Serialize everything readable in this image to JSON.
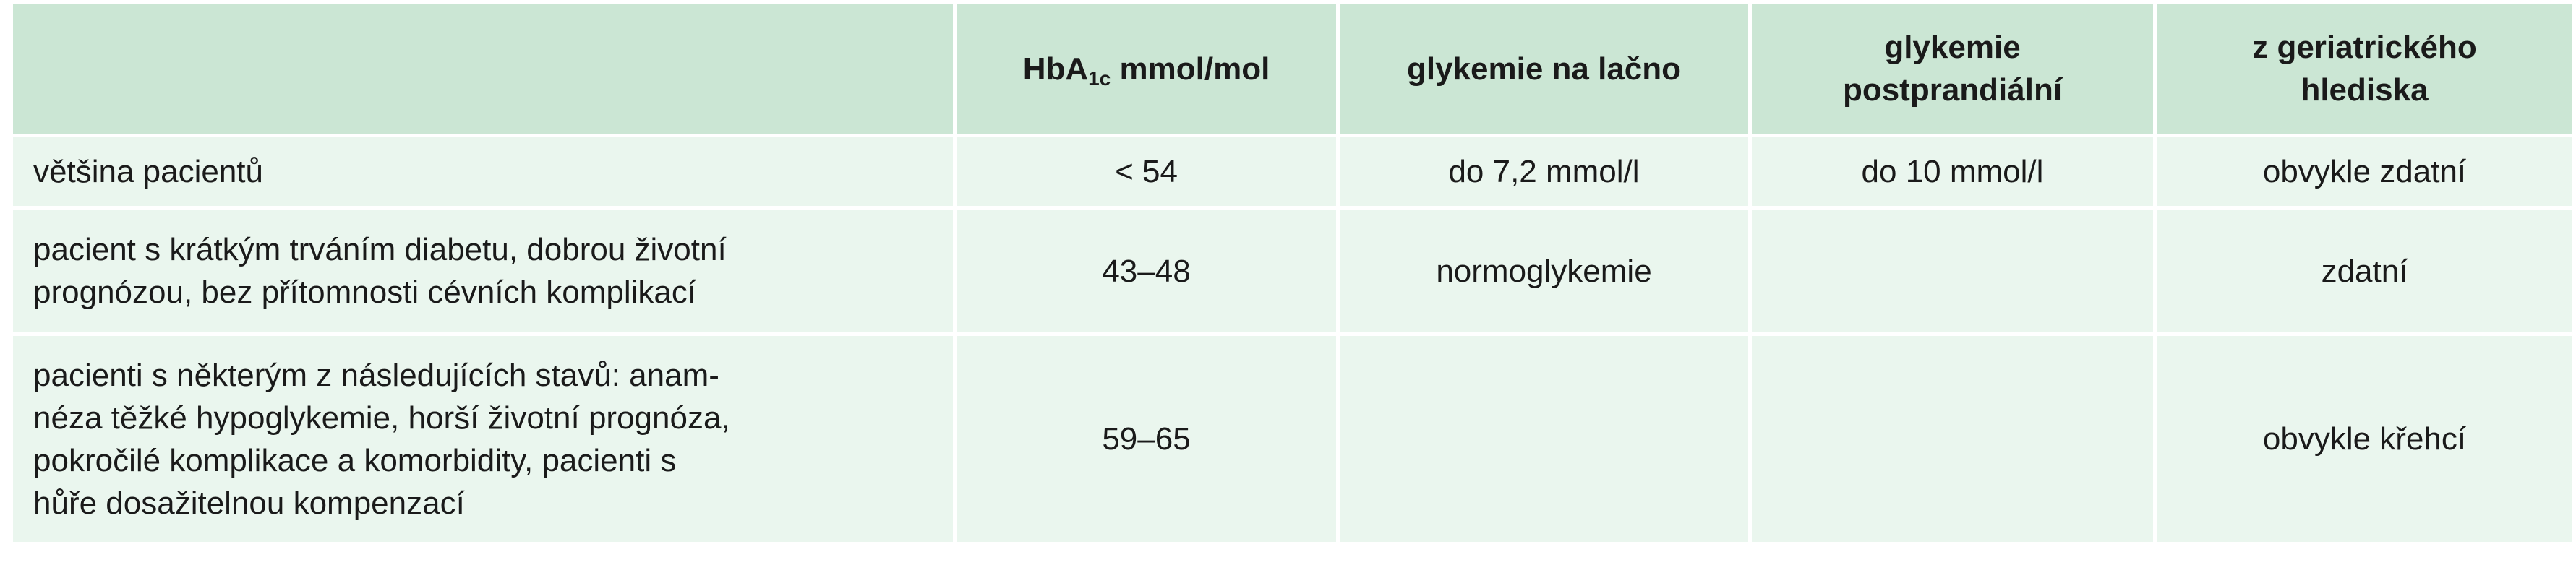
{
  "table": {
    "headers": {
      "col0": "",
      "hba_prefix": "HbA",
      "hba_sub": "1c",
      "hba_suffix": " mmol/mol",
      "col2": "glykemie na lačno",
      "col3_line1": "glykemie",
      "col3_line2": "postprandiální",
      "col4_line1": "z geriatrického",
      "col4_line2": "hlediska"
    },
    "rows": [
      {
        "group": "většina pacientů",
        "hba1c": "< 54",
        "fasting": "do 7,2 mmol/l",
        "postprandial": "do 10 mmol/l",
        "geriatric": "obvykle zdatní"
      },
      {
        "group_lines": [
          "pacient s krátkým trváním diabetu, dobrou životní",
          "prognózou, bez přítomnosti cévních komplikací"
        ],
        "hba1c": "43–48",
        "fasting": "normoglykemie",
        "postprandial": "",
        "geriatric": "zdatní"
      },
      {
        "group_lines": [
          "pacienti s některým z následujících stavů: anam-",
          "néza těžké hypoglykemie, horší životní prognóza,",
          "pokročilé komplikace a komorbidity, pacienti s",
          "hůře dosažitelnou kompenzací"
        ],
        "hba1c": "59–65",
        "fasting": "",
        "postprandial": "",
        "geriatric": "obvykle křehcí"
      }
    ]
  }
}
